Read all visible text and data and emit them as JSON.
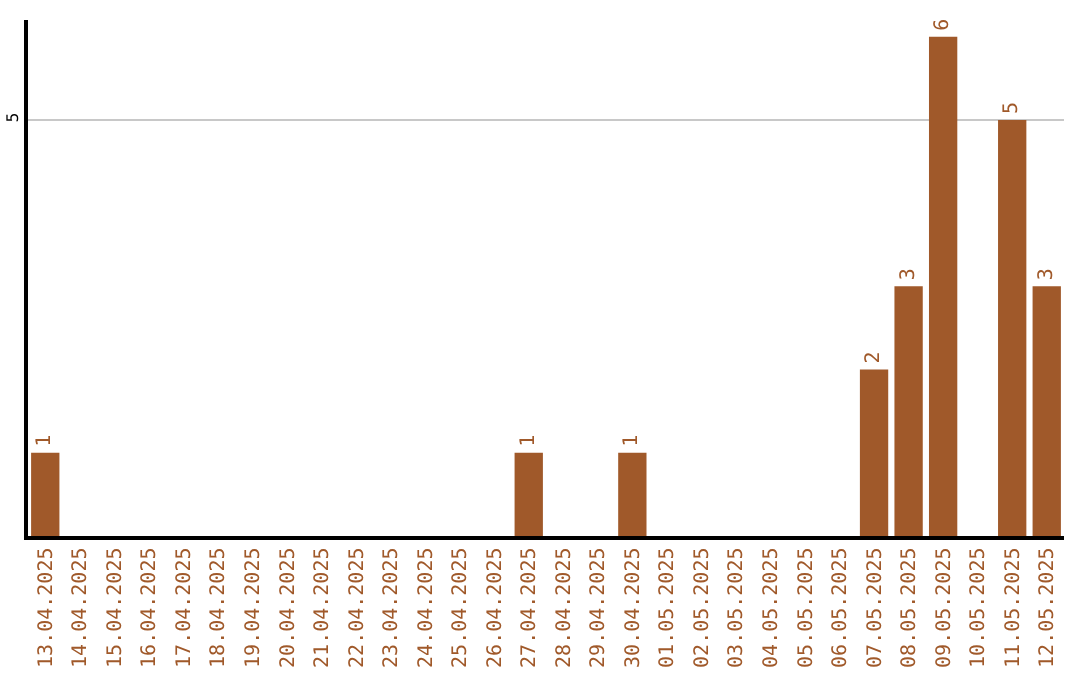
{
  "chart_data": {
    "type": "bar",
    "categories": [
      "13.04.2025",
      "14.04.2025",
      "15.04.2025",
      "16.04.2025",
      "17.04.2025",
      "18.04.2025",
      "19.04.2025",
      "20.04.2025",
      "21.04.2025",
      "22.04.2025",
      "23.04.2025",
      "24.04.2025",
      "25.04.2025",
      "26.04.2025",
      "27.04.2025",
      "28.04.2025",
      "29.04.2025",
      "30.04.2025",
      "01.05.2025",
      "02.05.2025",
      "03.05.2025",
      "04.05.2025",
      "05.05.2025",
      "06.05.2025",
      "07.05.2025",
      "08.05.2025",
      "09.05.2025",
      "10.05.2025",
      "11.05.2025",
      "12.05.2025"
    ],
    "values": [
      1,
      0,
      0,
      0,
      0,
      0,
      0,
      0,
      0,
      0,
      0,
      0,
      0,
      0,
      1,
      0,
      0,
      1,
      0,
      0,
      0,
      0,
      0,
      0,
      2,
      3,
      6,
      0,
      5,
      3
    ],
    "value_labels": [
      "1",
      null,
      null,
      null,
      null,
      null,
      null,
      null,
      null,
      null,
      null,
      null,
      null,
      null,
      "1",
      null,
      null,
      "1",
      null,
      null,
      null,
      null,
      null,
      null,
      "2",
      "3",
      "6",
      null,
      "5",
      "3"
    ],
    "color": "#a0592a",
    "ylim": [
      0,
      6.2
    ],
    "yticks": [
      5
    ],
    "grid": "y"
  }
}
